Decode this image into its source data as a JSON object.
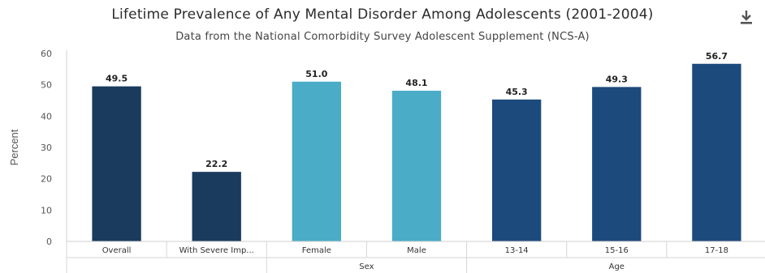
{
  "chart_data": {
    "type": "bar",
    "title": "Lifetime Prevalence of Any Mental Disorder Among Adolescents (2001-2004)",
    "subtitle": "Data from the National Comorbidity Survey Adolescent Supplement (NCS-A)",
    "ylabel": "Percent",
    "ylim": [
      0,
      60
    ],
    "yticks": [
      0,
      10,
      20,
      30,
      40,
      50,
      60
    ],
    "grid": false,
    "legend": "none",
    "categories": [
      "Overall",
      "With Severe Imp...",
      "Female",
      "Male",
      "13-14",
      "15-16",
      "17-18"
    ],
    "values": [
      49.5,
      22.2,
      51.0,
      48.1,
      45.3,
      49.3,
      56.7
    ],
    "value_labels": [
      "49.5",
      "22.2",
      "51.0",
      "48.1",
      "45.3",
      "49.3",
      "56.7"
    ],
    "groups": [
      {
        "label": "",
        "categories": [
          "Overall",
          "With Severe Imp..."
        ]
      },
      {
        "label": "Sex",
        "categories": [
          "Female",
          "Male"
        ]
      },
      {
        "label": "Age",
        "categories": [
          "13-14",
          "15-16",
          "17-18"
        ]
      }
    ],
    "bar_colors": [
      "#1a3a5e",
      "#1a3a5e",
      "#4aacc6",
      "#4aacc6",
      "#1d4a7c",
      "#1d4a7c",
      "#1d4a7c"
    ]
  },
  "toolbar": {
    "download_icon": "download-icon"
  }
}
